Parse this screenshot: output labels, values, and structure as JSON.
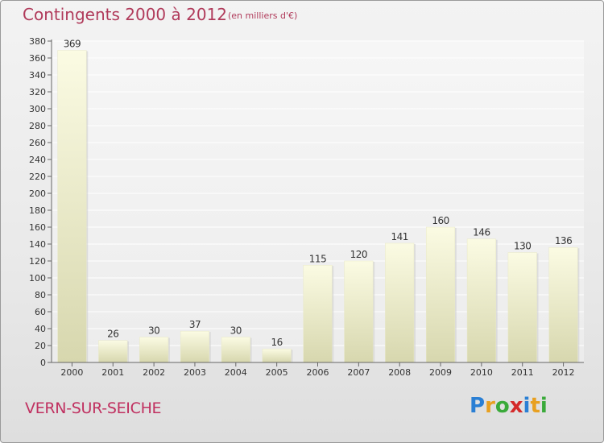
{
  "header": {
    "title": "Contingents 2000 à 2012",
    "subtitle": "(en milliers d'€)"
  },
  "footer": {
    "commune": "VERN-SUR-SEICHE",
    "logo": {
      "letters": [
        "P",
        "r",
        "o",
        "x",
        "i",
        "t",
        "i"
      ],
      "colors": [
        "#2a7fd4",
        "#e8a020",
        "#3aaa3a",
        "#d42a2a",
        "#2a7fd4",
        "#e8a020",
        "#3aaa3a"
      ]
    }
  },
  "colors": {
    "bar_top": "#fbfbe3",
    "bar_bottom": "#d7d7ae",
    "label": "#333333",
    "title": "#b03a5a"
  },
  "chart_data": {
    "type": "bar",
    "categories": [
      "2000",
      "2001",
      "2002",
      "2003",
      "2004",
      "2005",
      "2006",
      "2007",
      "2008",
      "2009",
      "2010",
      "2011",
      "2012"
    ],
    "values": [
      369,
      26,
      30,
      37,
      30,
      16,
      115,
      120,
      141,
      160,
      146,
      130,
      136
    ],
    "data_labels": [
      "369",
      "26",
      "30",
      "37",
      "30",
      "16",
      "115",
      "120",
      "141",
      "160",
      "146",
      "130",
      "136"
    ],
    "ylim": [
      0,
      380
    ],
    "yticks": [
      0,
      20,
      40,
      60,
      80,
      100,
      120,
      140,
      160,
      180,
      200,
      220,
      240,
      260,
      280,
      300,
      320,
      340,
      360,
      380
    ],
    "grid": true
  }
}
